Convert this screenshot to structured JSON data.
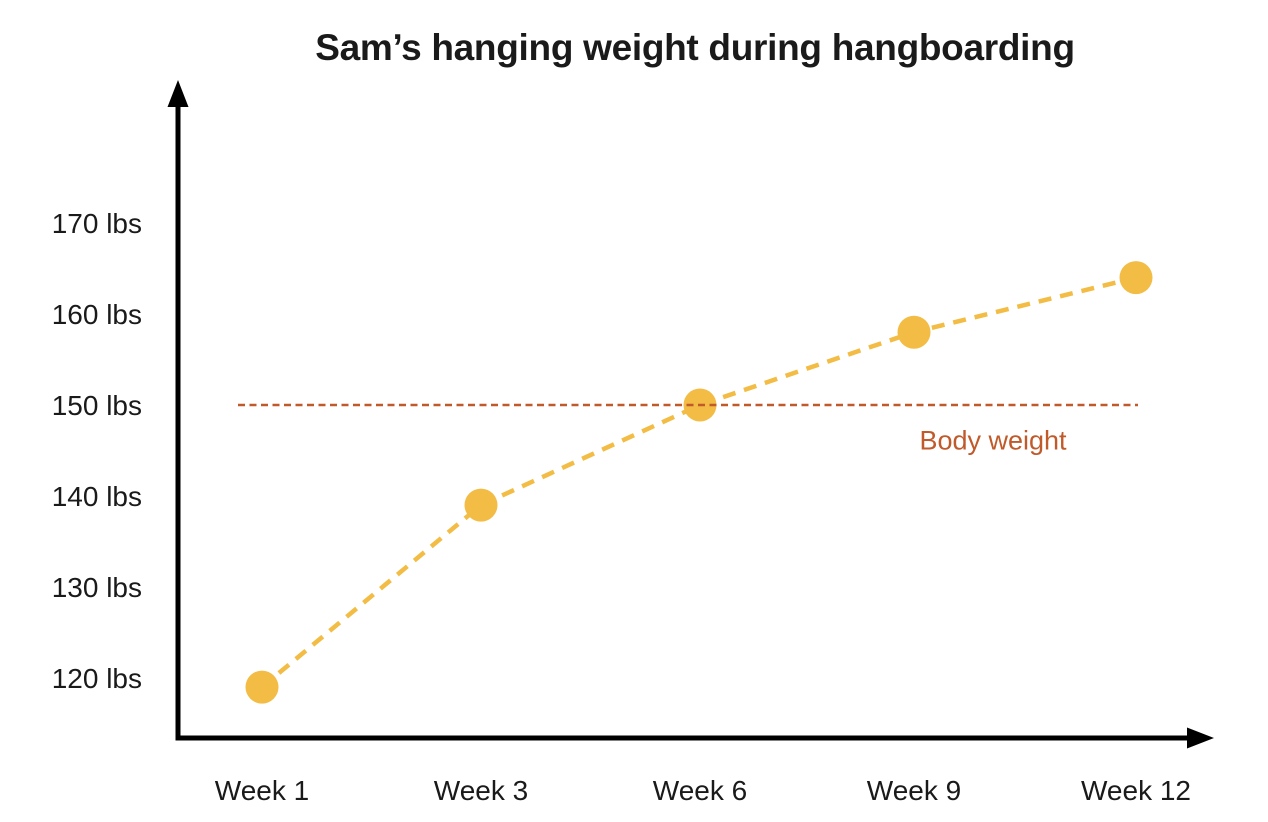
{
  "chart_data": {
    "type": "line",
    "title": "Sam’s hanging weight during hangboarding",
    "x_categories": [
      "Week 1",
      "Week 3",
      "Week 6",
      "Week 9",
      "Week 12"
    ],
    "series": [
      {
        "name": "Hanging weight",
        "values": [
          119,
          139,
          150,
          158,
          164
        ],
        "color": "#F2BC45",
        "line_style": "dashed",
        "marker": "circle"
      }
    ],
    "y_ticks": [
      {
        "value": 170,
        "label": "170 lbs"
      },
      {
        "value": 160,
        "label": "160 lbs"
      },
      {
        "value": 150,
        "label": "150 lbs"
      },
      {
        "value": 140,
        "label": "140 lbs"
      },
      {
        "value": 130,
        "label": "130 lbs"
      },
      {
        "value": 120,
        "label": "120 lbs"
      }
    ],
    "ylim": [
      120,
      170
    ],
    "y_unit": "lbs",
    "grid": false,
    "legend": false,
    "annotation": {
      "label": "Body weight",
      "value": 150,
      "color": "#C05A2B",
      "line_style": "dashed"
    },
    "axis_color": "#000000",
    "text_color": "#1a1a1a"
  }
}
